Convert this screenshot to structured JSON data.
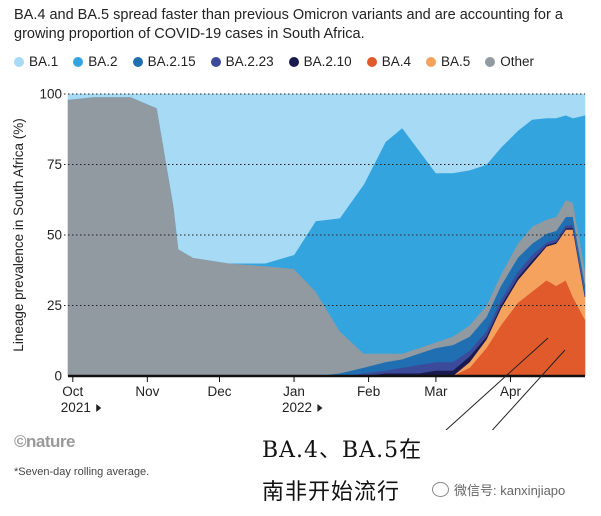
{
  "header": {
    "title": "BA.4 and BA.5 spread faster than previous Omicron variants and are accounting for a growing proportion of COVID-19 cases in South Africa."
  },
  "footer": {
    "logo": "©nature",
    "note": "*Seven-day rolling average."
  },
  "annotation": {
    "line1": "BA.4、BA.5在",
    "line2": "南非开始流行"
  },
  "watermark": {
    "text": "微信号: kanxinjiapo",
    "icon": "wechat-icon"
  },
  "chart_data": {
    "type": "area",
    "stacked": true,
    "ylabel": "Lineage prevalence in South Africa (%)",
    "ylim": [
      0,
      100
    ],
    "yticks": [
      0,
      25,
      50,
      75,
      100
    ],
    "grid": "horizontal dotted",
    "legend_position": "top",
    "x_range": [
      "2021-09-29",
      "2022-05-02"
    ],
    "xticks": [
      {
        "label": "Oct",
        "year": "2021",
        "date": "2021-10-01"
      },
      {
        "label": "Nov",
        "date": "2021-11-01"
      },
      {
        "label": "Dec",
        "date": "2021-12-01"
      },
      {
        "label": "Jan",
        "year": "2022",
        "date": "2022-01-01"
      },
      {
        "label": "Feb",
        "date": "2022-02-01"
      },
      {
        "label": "Mar",
        "date": "2022-03-01"
      },
      {
        "label": "Apr",
        "date": "2022-04-01"
      }
    ],
    "x": [
      "2021-09-29",
      "2021-10-10",
      "2021-10-25",
      "2021-11-05",
      "2021-11-08",
      "2021-11-12",
      "2021-11-14",
      "2021-11-20",
      "2021-12-05",
      "2021-12-20",
      "2022-01-01",
      "2022-01-10",
      "2022-01-20",
      "2022-01-30",
      "2022-02-08",
      "2022-02-15",
      "2022-02-22",
      "2022-03-01",
      "2022-03-08",
      "2022-03-15",
      "2022-03-22",
      "2022-03-28",
      "2022-04-04",
      "2022-04-10",
      "2022-04-16",
      "2022-04-20",
      "2022-04-24",
      "2022-04-27",
      "2022-05-02"
    ],
    "series": [
      {
        "name": "BA.4",
        "color": "#e05a2b",
        "values": [
          0,
          0,
          0,
          0,
          0,
          0,
          0,
          0,
          0,
          0,
          0,
          0,
          0,
          0,
          0,
          0,
          0,
          0,
          0,
          3,
          10,
          18,
          26,
          30,
          34,
          32,
          34,
          28,
          20
        ]
      },
      {
        "name": "BA.5",
        "color": "#f4a25d",
        "values": [
          0,
          0,
          0,
          0,
          0,
          0,
          0,
          0,
          0,
          0,
          0,
          0,
          0,
          0,
          0,
          0,
          0,
          0,
          0,
          2,
          3,
          6,
          8,
          10,
          12,
          15,
          18,
          24,
          8
        ]
      },
      {
        "name": "BA.2.10",
        "color": "#1a1a4f",
        "values": [
          0,
          0,
          0,
          0,
          0,
          0,
          0,
          0,
          0,
          0,
          0,
          0,
          0,
          0,
          1,
          1,
          1,
          2,
          2,
          2,
          1,
          1,
          1,
          1,
          0.5,
          0.5,
          0.5,
          0.5,
          0.5
        ]
      },
      {
        "name": "BA.2.23",
        "color": "#3c4a9a",
        "values": [
          0,
          0,
          0,
          0,
          0,
          0,
          0,
          0,
          0,
          0,
          0,
          0,
          0,
          1,
          1,
          2,
          3,
          3,
          3,
          2,
          2,
          2,
          2,
          2,
          1,
          1,
          1,
          1,
          1
        ]
      },
      {
        "name": "BA.2.15",
        "color": "#1f6fb2",
        "values": [
          0,
          0,
          0,
          0,
          0,
          0,
          0,
          0,
          0,
          0,
          0,
          0,
          1,
          2,
          3,
          3,
          4,
          5,
          6,
          5,
          5,
          5,
          5,
          4,
          3,
          3,
          3,
          3,
          3
        ]
      },
      {
        "name": "Other",
        "color": "#9199a1",
        "values": [
          98,
          99,
          99,
          95,
          80,
          60,
          45,
          42,
          40,
          39,
          38,
          30,
          15,
          5,
          3,
          2,
          2,
          2,
          3,
          4,
          4,
          4,
          5,
          6,
          5,
          5,
          6,
          5,
          5
        ]
      },
      {
        "name": "BA.2",
        "color": "#34a4de",
        "values": [
          0,
          0,
          0,
          0,
          0,
          0,
          0,
          0,
          0,
          1,
          5,
          25,
          40,
          60,
          75,
          80,
          70,
          60,
          58,
          55,
          50,
          45,
          40,
          38,
          36,
          35,
          30,
          30,
          55
        ]
      },
      {
        "name": "BA.1",
        "color": "#a6daf5",
        "values": [
          2,
          1,
          1,
          5,
          20,
          40,
          55,
          58,
          60,
          60,
          57,
          45,
          44,
          32,
          17,
          12,
          20,
          28,
          28,
          27,
          25,
          19,
          13,
          9,
          8.5,
          8.5,
          7.5,
          8.5,
          7.5
        ]
      }
    ],
    "legend_order": [
      "BA.1",
      "BA.2",
      "BA.2.15",
      "BA.2.23",
      "BA.2.10",
      "BA.4",
      "BA.5",
      "Other"
    ]
  }
}
